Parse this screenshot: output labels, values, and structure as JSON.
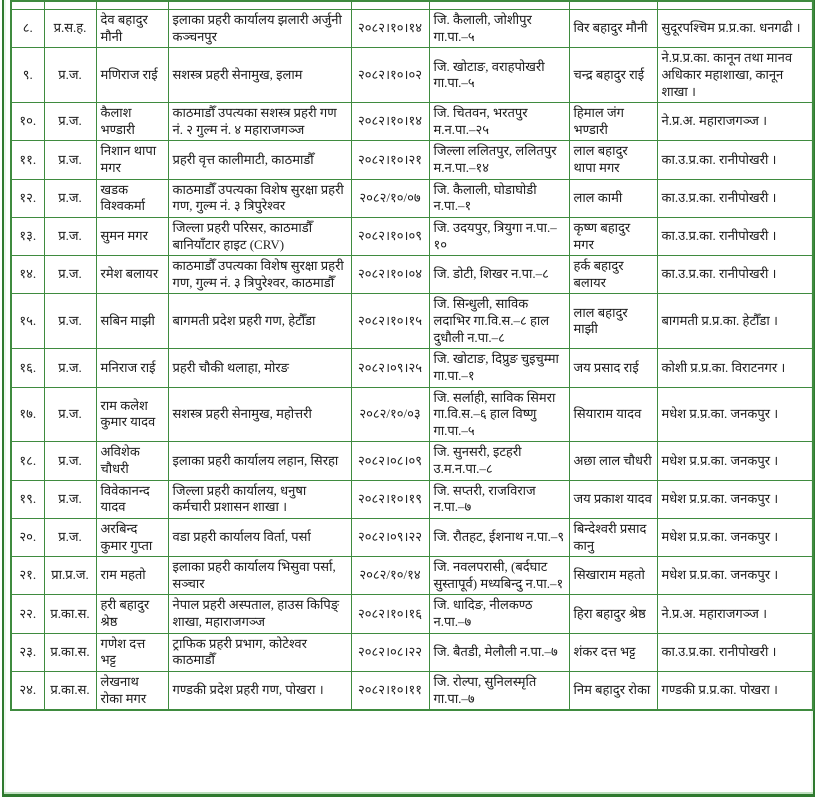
{
  "colors": {
    "border_green": "#3f8b3f",
    "frame_green": "#2f7a2f",
    "text": "#1c1c1c",
    "background": "#ffffff"
  },
  "table": {
    "column_keys": [
      "sn",
      "rank",
      "name",
      "office",
      "date",
      "address",
      "relative_name",
      "posting"
    ],
    "rows": [
      {
        "sn": "८.",
        "rank": "प्र.स.ह.",
        "name": "देव बहादुर मौनी",
        "office": "इलाका प्रहरी कार्यालय झलारी अर्जुनी कञ्चनपुर",
        "date": "२०८२।१०।१४",
        "address": "जि. कैलाली, जोशीपुर गा.पा.–५",
        "relative_name": "विर बहादुर मौनी",
        "posting": "सुदूरपश्चिम प्र.प्र.का. धनगढी ।"
      },
      {
        "sn": "९.",
        "rank": "प्र.ज.",
        "name": "मणिराज राई",
        "office": "सशस्त्र प्रहरी सेनामुख, इलाम",
        "date": "२०८२।१०।०२",
        "address": "जि. खोटाङ, वराहपोखरी गा.पा.–५",
        "relative_name": "चन्द्र बहादुर राई",
        "posting": "ने.प्र.प्र.का. कानून तथा मानव अधिकार महाशाखा, कानून शाखा ।"
      },
      {
        "sn": "१०.",
        "rank": "प्र.ज.",
        "name": "कैलाश भण्डारी",
        "office": "काठमाडौँ उपत्यका सशस्त्र प्रहरी गण नं. २ गुल्म नं. ४ महाराजगञ्ज",
        "date": "२०८२।१०।१४",
        "address": "जि. चितवन, भरतपुर म.न.पा.–२५",
        "relative_name": "हिमाल जंग भण्डारी",
        "posting": "ने.प्र.अ. महाराजगञ्ज ।"
      },
      {
        "sn": "११.",
        "rank": "प्र.ज.",
        "name": "निशान थापा मगर",
        "office": "प्रहरी वृत्त कालीमाटी, काठमाडौँ",
        "date": "२०८२।१०।२१",
        "address": "जिल्ला ललितपुर, ललितपुर म.न.पा.–१४",
        "relative_name": "लाल बहादुर थापा मगर",
        "posting": "का.उ.प्र.का. रानीपोखरी ।"
      },
      {
        "sn": "१२.",
        "rank": "प्र.ज.",
        "name": "खडक विश्वकर्मा",
        "office": "काठमाडौँ उपत्यका विशेष सुरक्षा प्रहरी गण, गुल्म नं. ३ त्रिपुरेश्वर",
        "date": "२०८२/१०/०७",
        "address": "जि. कैलाली, घोडाघोडी न.पा.–१",
        "relative_name": "लाल कामी",
        "posting": "का.उ.प्र.का. रानीपोखरी ।"
      },
      {
        "sn": "१३.",
        "rank": "प्र.ज.",
        "name": "सुमन मगर",
        "office": "जिल्ला प्रहरी परिसर, काठमाडौँ बानियाँटार हाइट (CRV)",
        "date": "२०८२।१०।०९",
        "address": "जि. उदयपुर, त्रियुगा न.पा.–१०",
        "relative_name": "कृष्ण बहादुर मगर",
        "posting": "का.उ.प्र.का. रानीपोखरी ।"
      },
      {
        "sn": "१४.",
        "rank": "प्र.ज.",
        "name": "रमेश बलायर",
        "office": "काठमाडौँ उपत्यका विशेष सुरक्षा प्रहरी गण, गुल्म नं. ३ त्रिपुरेश्वर, काठमाडौँ",
        "date": "२०८२।१०।०४",
        "address": "जि. डोटी, शिखर न.पा.–८",
        "relative_name": "हर्क बहादुर बलायर",
        "posting": "का.उ.प्र.का. रानीपोखरी ।"
      },
      {
        "sn": "१५.",
        "rank": "प्र.ज.",
        "name": "सबिन माझी",
        "office": "बागमती प्रदेश प्रहरी गण, हेटौँडा",
        "date": "२०८२।१०।१५",
        "address": "जि. सिन्धुली, साविक लदाभिर गा.वि.स.–८ हाल दुधौली न.पा.–८",
        "relative_name": "लाल बहादुर माझी",
        "posting": "बागमती प्र.प्र.का. हेटौँडा ।"
      },
      {
        "sn": "१६.",
        "rank": "प्र.ज.",
        "name": "मनिराज राई",
        "office": "प्रहरी चौकी थलाहा, मोरङ",
        "date": "२०८२।०९।२५",
        "address": "जि. खोटाङ, दिप्रुङ चुइचुम्मा गा.पा.–१",
        "relative_name": "जय प्रसाद राई",
        "posting": "कोशी प्र.प्र.का. विराटनगर ।"
      },
      {
        "sn": "१७.",
        "rank": "प्र.ज.",
        "name": "राम कलेश कुमार यादव",
        "office": "सशस्त्र प्रहरी सेनामुख, महोत्तरी",
        "date": "२०८२/१०/०३",
        "address": "जि. सर्लाही, साविक सिमरा गा.वि.स.–६ हाल विष्णु गा.पा.–५",
        "relative_name": "सियाराम यादव",
        "posting": "मधेश प्र.प्र.का. जनकपुर ।"
      },
      {
        "sn": "१८.",
        "rank": "प्र.ज.",
        "name": "अविशेक चौधरी",
        "office": "इलाका प्रहरी कार्यालय लहान, सिरहा",
        "date": "२०८२।०८।०९",
        "address": "जि. सुनसरी, इटहरी उ.म.न.पा.–८",
        "relative_name": "अछा लाल चौधरी",
        "posting": "मधेश प्र.प्र.का. जनकपुर ।"
      },
      {
        "sn": "१९.",
        "rank": "प्र.ज.",
        "name": "विवेकानन्द यादव",
        "office": "जिल्ला प्रहरी कार्यालय, धनुषा कर्मचारी प्रशासन शाखा ।",
        "date": "२०८२।१०।१९",
        "address": "जि. सप्तरी, राजविराज न.पा.–७",
        "relative_name": "जय प्रकाश यादव",
        "posting": "मधेश प्र.प्र.का. जनकपुर ।"
      },
      {
        "sn": "२०.",
        "rank": "प्र.ज.",
        "name": "अरबिन्द कुमार गुप्ता",
        "office": "वडा प्रहरी कार्यालय विर्ता, पर्सा",
        "date": "२०८२।०९।२२",
        "address": "जि. रौतहट, ईशनाथ न.पा.–९",
        "relative_name": "बिन्देश्वरी प्रसाद कानु",
        "posting": "मधेश प्र.प्र.का. जनकपुर ।"
      },
      {
        "sn": "२१.",
        "rank": "प्रा.प्र.ज.",
        "name": "राम महतो",
        "office": "इलाका प्रहरी कार्यालय भिसुवा पर्सा, सञ्चार",
        "date": "२०८२/१०/१४",
        "address": "जि. नवलपरासी, (बर्दघाट सुस्तापूर्व) मध्यबिन्दु न.पा.–१",
        "relative_name": "सिखाराम महतो",
        "posting": "मधेश प्र.प्र.का. जनकपुर ।"
      },
      {
        "sn": "२२.",
        "rank": "प्र.का.स.",
        "name": "हरी बहादुर श्रेष्ठ",
        "office": "नेपाल प्रहरी अस्पताल, हाउस किपिङ् शाखा, महाराजगञ्ज",
        "date": "२०८२।१०।१६",
        "address": "जि. धादिङ, नीलकण्ठ न.पा.–७",
        "relative_name": "हिरा बहादुर श्रेष्ठ",
        "posting": "ने.प्र.अ. महाराजगञ्ज ।"
      },
      {
        "sn": "२३.",
        "rank": "प्र.का.स.",
        "name": "गणेश दत्त भट्ट",
        "office": "ट्राफिक प्रहरी प्रभाग, कोटेश्वर काठमाडौँ",
        "date": "२०८२।०८।२२",
        "address": "जि. बैतडी, मेलौली न.पा.–७",
        "relative_name": "शंकर दत्त भट्ट",
        "posting": "का.उ.प्र.का. रानीपोखरी ।"
      },
      {
        "sn": "२४.",
        "rank": "प्र.का.स.",
        "name": "लेखनाथ रोका मगर",
        "office": "गण्डकी प्रदेश प्रहरी गण, पोखरा ।",
        "date": "२०८२।१०।११",
        "address": "जि. रोल्पा, सुनिलस्मृति गा.पा.–७",
        "relative_name": "निम बहादुर रोका",
        "posting": "गण्डकी प्र.प्र.का. पोखरा ।"
      }
    ]
  }
}
